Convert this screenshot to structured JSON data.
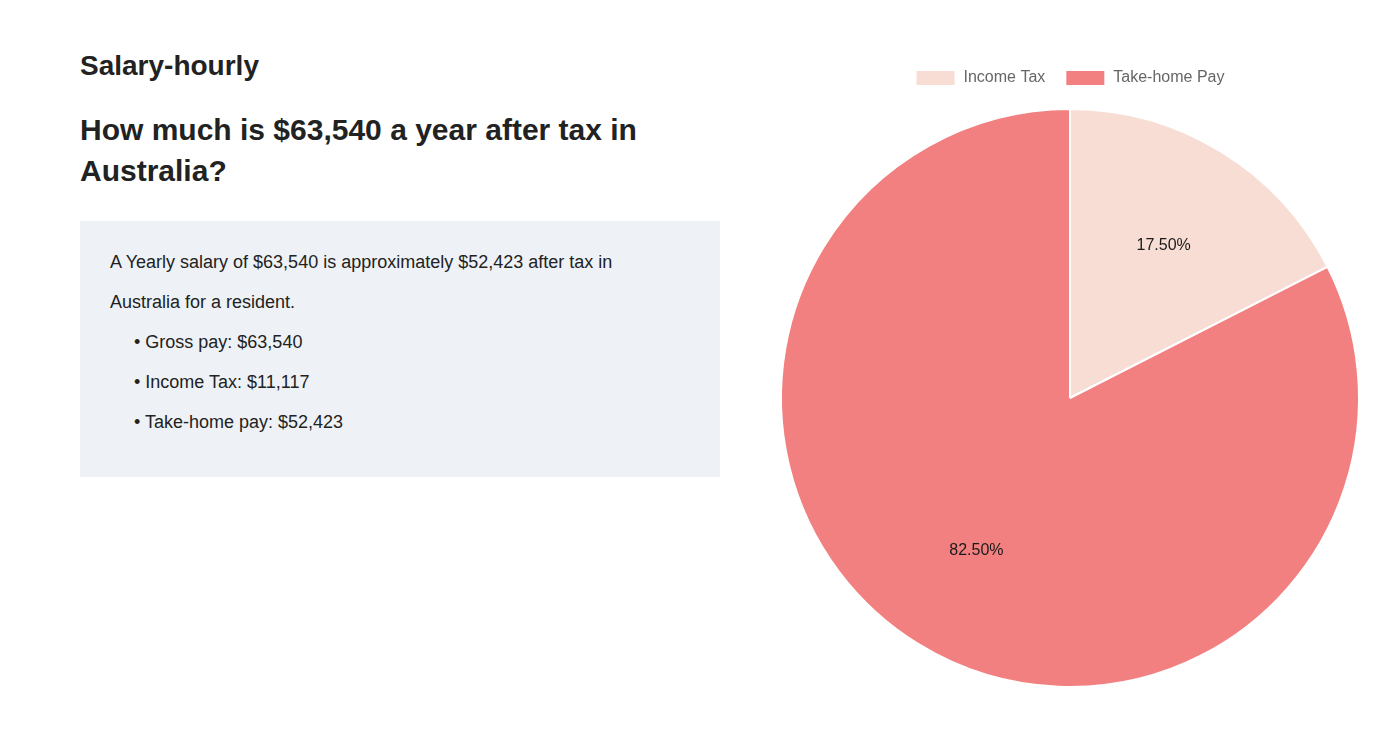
{
  "chart_data": {
    "type": "pie",
    "title": "How much is $63,540 a year after tax in Australia?",
    "categories": [
      "Income Tax",
      "Take-home Pay"
    ],
    "values": [
      17.5,
      82.5
    ],
    "value_labels": [
      "17.50%",
      "82.50%"
    ],
    "colors": [
      "#f8ddd5",
      "#f28080"
    ],
    "data_labels": true,
    "legend": "top",
    "annotations": [
      "Salary-hourly",
      "A Yearly salary of $63,540 is approximately $52,423 after tax in",
      "Australia for a resident.",
      "• Gross pay: $63,540",
      "• Income Tax: $11,117",
      "• Take-home pay: $52,423"
    ]
  }
}
